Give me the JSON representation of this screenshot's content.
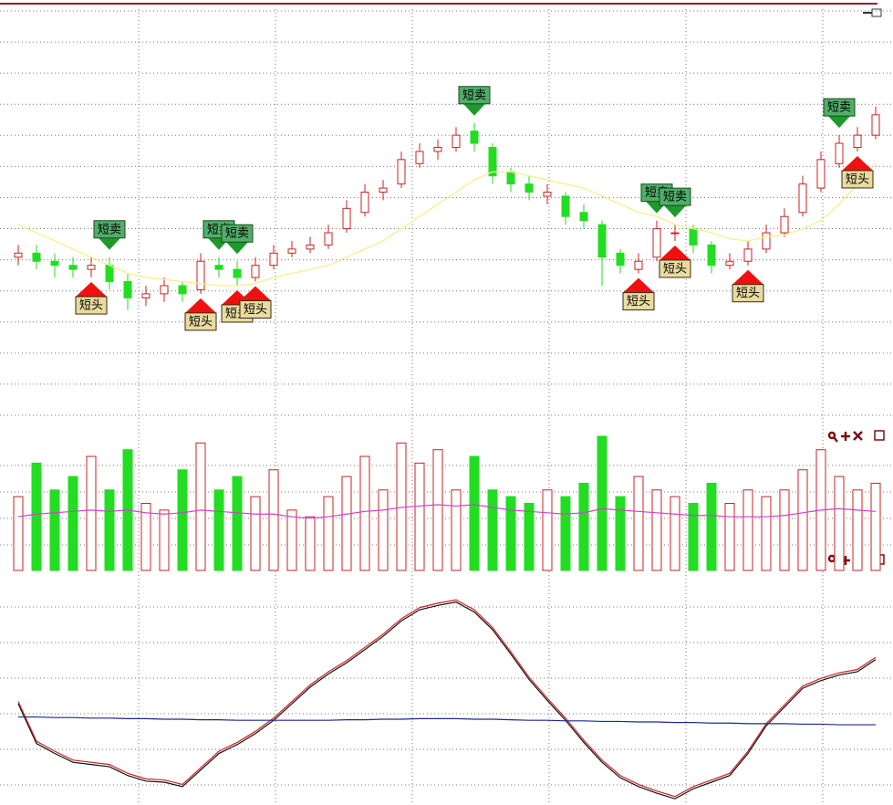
{
  "chart_data": [
    {
      "type": "candlestick",
      "open": [
        40,
        41,
        39,
        38,
        37,
        38,
        34,
        30,
        31,
        33,
        32,
        38,
        37,
        35,
        38,
        41,
        42,
        43,
        47,
        51,
        56,
        58,
        63,
        66,
        67,
        71,
        67,
        61,
        58,
        55,
        55,
        51,
        48,
        41,
        37,
        40,
        46,
        47,
        43,
        38,
        39,
        42,
        46,
        51,
        57,
        63,
        67,
        70
      ],
      "close": [
        41,
        39,
        38,
        37,
        38,
        34,
        30,
        31,
        33,
        31,
        39,
        37,
        35,
        38,
        41,
        42,
        43,
        46,
        52,
        56,
        57,
        64,
        66,
        67,
        70,
        68,
        60,
        58,
        56,
        56,
        50,
        49,
        40,
        38,
        39,
        47,
        46,
        43,
        38,
        39,
        42,
        46,
        50,
        58,
        64,
        68,
        70,
        75
      ],
      "high": [
        43,
        43,
        41,
        40,
        40,
        40,
        36,
        33,
        35,
        34,
        41,
        40,
        39,
        40,
        43,
        44,
        45,
        48,
        54,
        58,
        59,
        66,
        68,
        69,
        72,
        73,
        68,
        62,
        60,
        58,
        56,
        53,
        49,
        42,
        41,
        49,
        48,
        48,
        44,
        41,
        44,
        48,
        52,
        60,
        66,
        70,
        72,
        77
      ],
      "low": [
        38,
        37,
        35,
        35,
        35,
        32,
        27,
        28,
        29,
        29,
        31,
        35,
        33,
        34,
        37,
        40,
        41,
        42,
        46,
        50,
        54,
        57,
        62,
        64,
        66,
        66,
        58,
        56,
        54,
        53,
        48,
        47,
        33,
        36,
        36,
        39,
        44,
        41,
        36,
        37,
        38,
        41,
        45,
        50,
        56,
        62,
        66,
        69
      ],
      "series": [
        {
          "color": "#f5f08a",
          "values": [
            48,
            46,
            44,
            42,
            40,
            38,
            36,
            35,
            34.5,
            34,
            33.5,
            33,
            33,
            33.5,
            35,
            36,
            37,
            38,
            40,
            42,
            44,
            47,
            50,
            53,
            56,
            59,
            61,
            61,
            60,
            59,
            58,
            57,
            55,
            53,
            51,
            50,
            48,
            47,
            46,
            44.5,
            44,
            45,
            45.5,
            47,
            49,
            53,
            58,
            63
          ]
        }
      ],
      "up_color": "#cc2222",
      "down_color": "#22dd22",
      "ylim": [
        0,
        101
      ],
      "grid": true,
      "signals": [
        {
          "index": 5,
          "label": "短卖",
          "side": "sell"
        },
        {
          "index": 11,
          "label": "短卖",
          "side": "sell"
        },
        {
          "index": 12,
          "label": "短卖",
          "side": "sell"
        },
        {
          "index": 25,
          "label": "短卖",
          "side": "sell"
        },
        {
          "index": 35,
          "label": "短卖",
          "side": "sell"
        },
        {
          "index": 36,
          "label": "短卖",
          "side": "sell"
        },
        {
          "index": 45,
          "label": "短卖",
          "side": "sell"
        },
        {
          "index": 4,
          "label": "短头",
          "side": "buy"
        },
        {
          "index": 10,
          "label": "短头",
          "side": "buy"
        },
        {
          "index": 12,
          "label": "短头",
          "side": "buy"
        },
        {
          "index": 13,
          "label": "短头",
          "side": "buy"
        },
        {
          "index": 34,
          "label": "短头",
          "side": "buy"
        },
        {
          "index": 36,
          "label": "短头",
          "side": "buy"
        },
        {
          "index": 40,
          "label": "短头",
          "side": "buy"
        },
        {
          "index": 46,
          "label": "短头",
          "side": "buy"
        }
      ]
    },
    {
      "type": "volume",
      "values": [
        55,
        80,
        60,
        70,
        85,
        60,
        90,
        50,
        45,
        75,
        95,
        60,
        70,
        55,
        75,
        45,
        40,
        55,
        70,
        85,
        60,
        95,
        80,
        90,
        60,
        85,
        60,
        55,
        50,
        60,
        55,
        65,
        100,
        55,
        70,
        60,
        55,
        50,
        65,
        50,
        60,
        55,
        60,
        75,
        90,
        70,
        60,
        65
      ],
      "series": [
        {
          "color": "#d040d0",
          "values": [
            40,
            42,
            43,
            44,
            45,
            44,
            45,
            43,
            42,
            43,
            45,
            44,
            43,
            42,
            42,
            40,
            39,
            40,
            42,
            44,
            45,
            47,
            48,
            49,
            48,
            49,
            47,
            45,
            44,
            43,
            42,
            43,
            46,
            45,
            44,
            43,
            42,
            41,
            41,
            40,
            40,
            40,
            41,
            43,
            45,
            46,
            45,
            44
          ]
        }
      ],
      "up_color": "#cc2222",
      "down_color": "#22dd22",
      "ylim": [
        0,
        100
      ],
      "grid": true
    },
    {
      "type": "line",
      "series": [
        {
          "color": "#111111",
          "values": [
            15,
            -21,
            -30,
            -38,
            -40,
            -42,
            -50,
            -55,
            -56,
            -60,
            -45,
            -30,
            -22,
            -12,
            0,
            15,
            30,
            42,
            52,
            64,
            76,
            90,
            100,
            104,
            107,
            98,
            82,
            60,
            37,
            18,
            0,
            -20,
            -38,
            -52,
            -60,
            -66,
            -71,
            -62,
            -56,
            -50,
            -30,
            -5,
            12,
            29,
            36,
            41,
            44,
            55
          ]
        },
        {
          "color": "#cc2222",
          "values": [
            17,
            -19,
            -28,
            -36,
            -38,
            -40,
            -48,
            -53,
            -54,
            -58,
            -43,
            -28,
            -20,
            -10,
            2,
            17,
            32,
            44,
            54,
            66,
            78,
            92,
            102,
            106,
            109,
            100,
            84,
            62,
            39,
            20,
            2,
            -18,
            -36,
            -50,
            -58,
            -64,
            -69,
            -60,
            -54,
            -48,
            -28,
            -3,
            14,
            31,
            38,
            43,
            46,
            57
          ]
        },
        {
          "color": "#1a2a8a",
          "values": [
            3,
            3,
            2.5,
            2.5,
            2,
            2,
            1.5,
            1.5,
            1,
            1,
            0.5,
            0.5,
            0,
            0,
            0,
            0,
            0,
            0,
            0.5,
            0.5,
            1,
            1,
            1.5,
            1.5,
            1.5,
            1,
            1,
            0.5,
            0,
            0,
            -0.5,
            -0.5,
            -1,
            -1,
            -1.5,
            -1.5,
            -2,
            -2,
            -2.5,
            -2.5,
            -3,
            -3,
            -3,
            -3.5,
            -3.5,
            -4,
            -4,
            -4
          ]
        }
      ],
      "ylim": [
        -75,
        115
      ],
      "grid": true
    }
  ]
}
